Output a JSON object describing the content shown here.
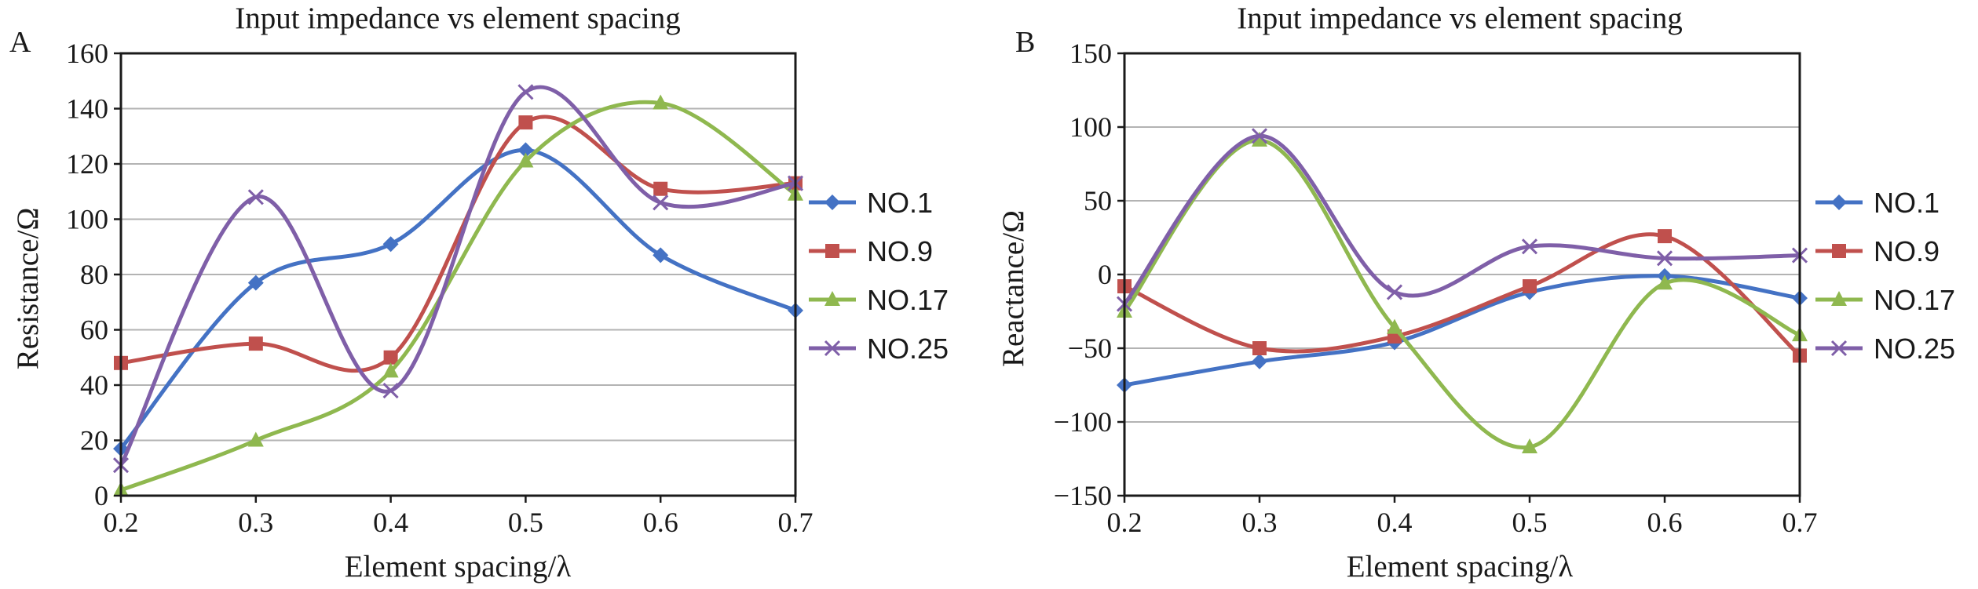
{
  "colors": {
    "NO.1": "#4472c4",
    "NO.9": "#c0504d",
    "NO.17": "#8fb84f",
    "NO.25": "#7f5fa8"
  },
  "chart_data": [
    {
      "panel": "A",
      "type": "line",
      "smooth": true,
      "title": "Input impedance vs element spacing",
      "xlabel": "Element spacing/λ",
      "ylabel": "Resistance/Ω",
      "xlim": [
        0.2,
        0.7
      ],
      "ylim": [
        0,
        160
      ],
      "xticks": [
        0.2,
        0.3,
        0.4,
        0.5,
        0.6,
        0.7
      ],
      "yticks": [
        0,
        20,
        40,
        60,
        80,
        100,
        120,
        140,
        160
      ],
      "xtick_labels": [
        "0.2",
        "0.3",
        "0.4",
        "0.5",
        "0.6",
        "0.7"
      ],
      "ytick_labels": [
        "0",
        "20",
        "40",
        "60",
        "80",
        "100",
        "120",
        "140",
        "160"
      ],
      "grid": "horizontal",
      "legend": "right",
      "x": [
        0.2,
        0.3,
        0.4,
        0.5,
        0.6,
        0.7
      ],
      "series": [
        {
          "name": "NO.1",
          "marker": "diamond",
          "values": [
            17,
            77,
            91,
            125,
            87,
            67
          ]
        },
        {
          "name": "NO.9",
          "marker": "square",
          "values": [
            48,
            55,
            50,
            135,
            111,
            113
          ]
        },
        {
          "name": "NO.17",
          "marker": "triangle",
          "values": [
            2,
            20,
            45,
            121,
            142,
            109
          ]
        },
        {
          "name": "NO.25",
          "marker": "x",
          "values": [
            11,
            108,
            38,
            146,
            106,
            113
          ]
        }
      ]
    },
    {
      "panel": "B",
      "type": "line",
      "smooth": true,
      "title": "Input impedance vs element spacing",
      "xlabel": "Element spacing/λ",
      "ylabel": "Reactance/Ω",
      "xlim": [
        0.2,
        0.7
      ],
      "ylim": [
        -150,
        150
      ],
      "xticks": [
        0.2,
        0.3,
        0.4,
        0.5,
        0.6,
        0.7
      ],
      "yticks": [
        -150,
        -100,
        -50,
        0,
        50,
        100,
        150
      ],
      "xtick_labels": [
        "0.2",
        "0.3",
        "0.4",
        "0.5",
        "0.6",
        "0.7"
      ],
      "ytick_labels": [
        "−150",
        "−100",
        "−50",
        "0",
        "50",
        "100",
        "150"
      ],
      "grid": "horizontal",
      "legend": "right",
      "x": [
        0.2,
        0.3,
        0.4,
        0.5,
        0.6,
        0.7
      ],
      "series": [
        {
          "name": "NO.1",
          "marker": "diamond",
          "values": [
            -75,
            -59,
            -46,
            -12,
            -1,
            -16
          ]
        },
        {
          "name": "NO.9",
          "marker": "square",
          "values": [
            -8,
            -50,
            -42,
            -8,
            26,
            -55
          ]
        },
        {
          "name": "NO.17",
          "marker": "triangle",
          "values": [
            -25,
            91,
            -36,
            -117,
            -6,
            -41
          ]
        },
        {
          "name": "NO.25",
          "marker": "x",
          "values": [
            -20,
            94,
            -12,
            19,
            11,
            13
          ]
        }
      ]
    }
  ]
}
